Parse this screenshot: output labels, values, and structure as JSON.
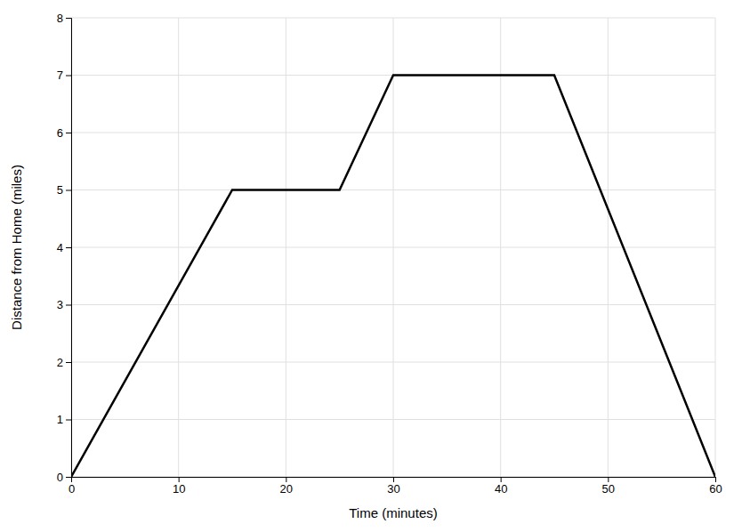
{
  "chart_data": {
    "type": "line",
    "x": [
      0,
      15,
      25,
      30,
      45,
      60
    ],
    "values": [
      0,
      5,
      5,
      7,
      7,
      0
    ],
    "color": "#000000",
    "xlabel": "Time (minutes)",
    "ylabel": "Distance from Home (miles)",
    "xlim": [
      0,
      60
    ],
    "ylim": [
      0,
      8
    ],
    "xticks": [
      0,
      10,
      20,
      30,
      40,
      50,
      60
    ],
    "yticks": [
      0,
      1,
      2,
      3,
      4,
      5,
      6,
      7,
      8
    ],
    "grid": true
  }
}
